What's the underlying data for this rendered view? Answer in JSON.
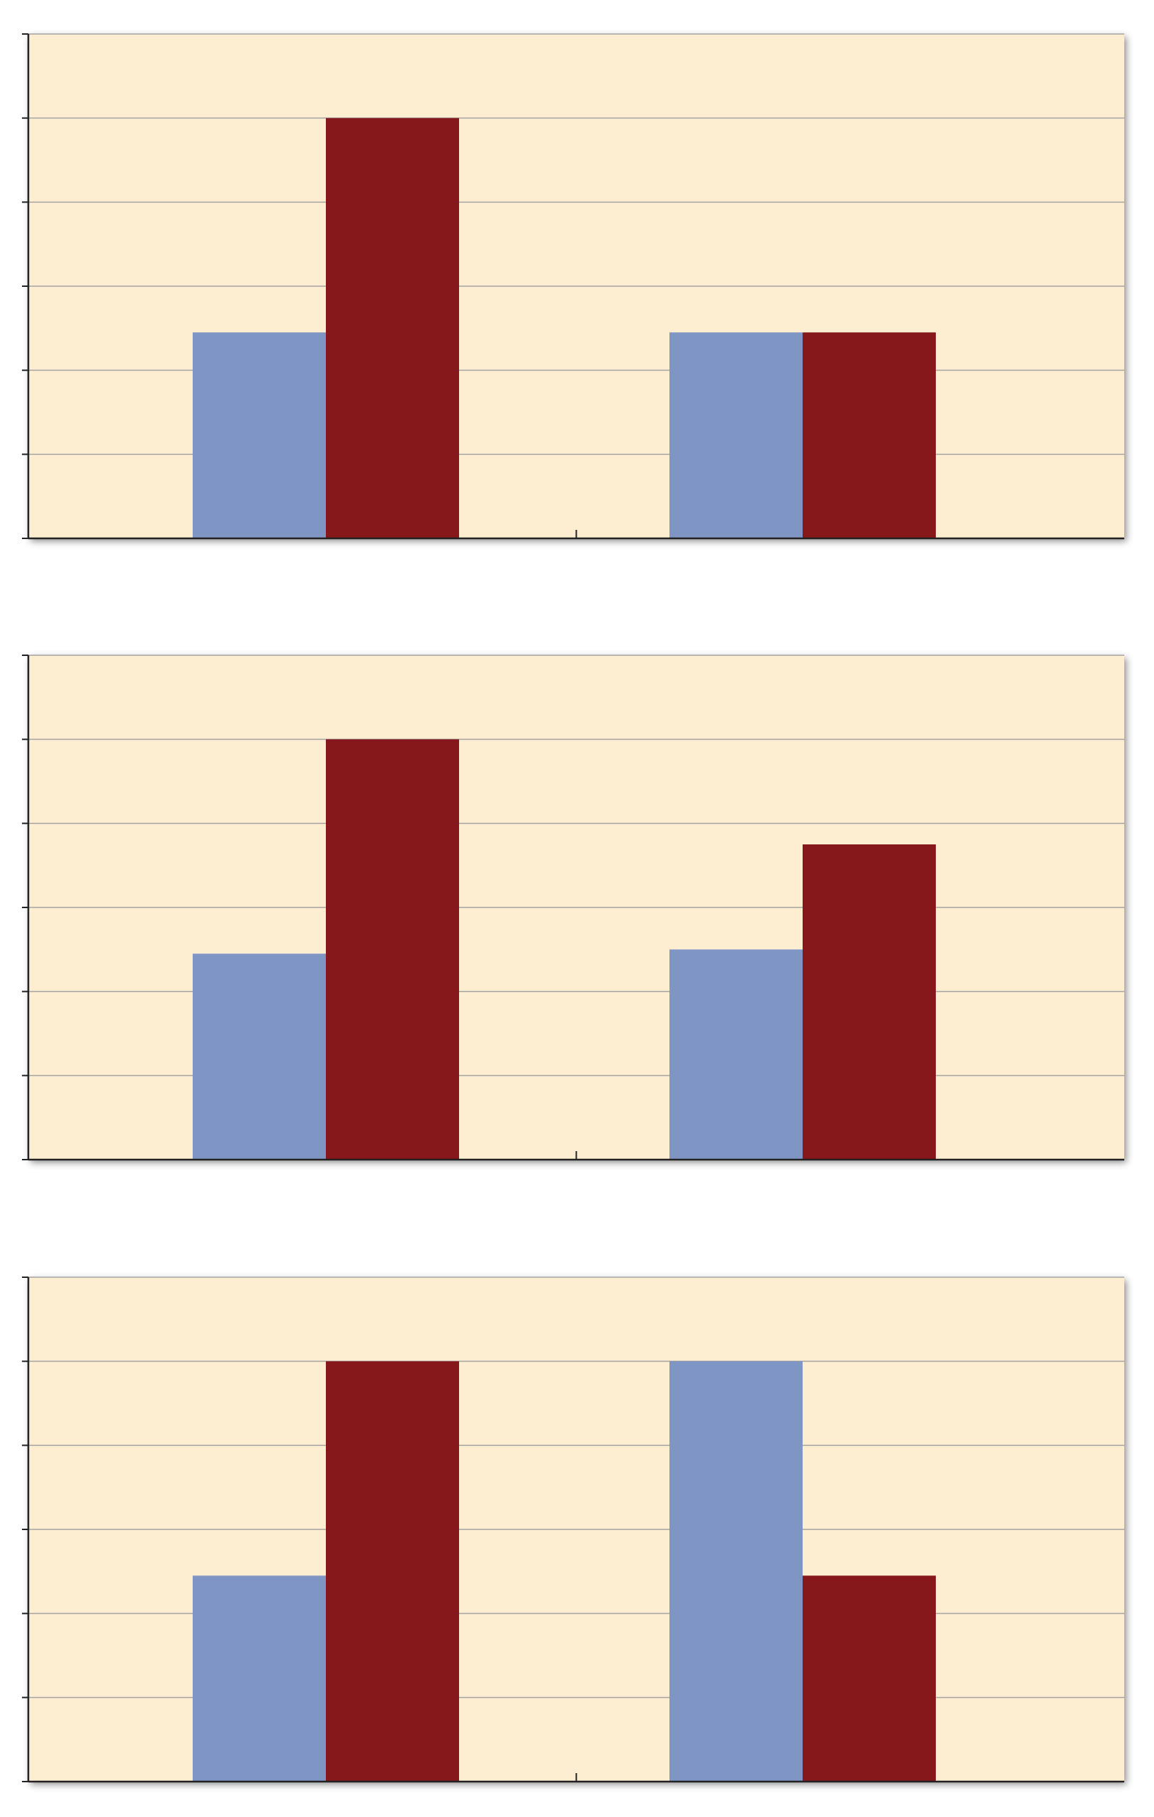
{
  "colors": {
    "background": "#ffffff",
    "plot_fill": "#fdeed1",
    "gridline": "#a3a3a3",
    "axis": "#222222",
    "series_a": "#7f95c4",
    "series_b": "#86171b"
  },
  "chart_data": [
    {
      "type": "bar",
      "categories": [
        "",
        ""
      ],
      "series": [
        {
          "color": "#7f95c4",
          "values": [
            2.45,
            2.45
          ]
        },
        {
          "color": "#86171b",
          "values": [
            5.0,
            2.45
          ]
        }
      ],
      "ylim": [
        0,
        6
      ],
      "y_ticks": [
        0,
        1,
        2,
        3,
        4,
        5,
        6
      ],
      "grid": true,
      "legend": "none"
    },
    {
      "type": "bar",
      "categories": [
        "",
        ""
      ],
      "series": [
        {
          "color": "#7f95c4",
          "values": [
            2.45,
            2.5
          ]
        },
        {
          "color": "#86171b",
          "values": [
            5.0,
            3.75
          ]
        }
      ],
      "ylim": [
        0,
        6
      ],
      "y_ticks": [
        0,
        1,
        2,
        3,
        4,
        5,
        6
      ],
      "grid": true,
      "legend": "none"
    },
    {
      "type": "bar",
      "categories": [
        "",
        ""
      ],
      "series": [
        {
          "color": "#7f95c4",
          "values": [
            2.45,
            5.0
          ]
        },
        {
          "color": "#86171b",
          "values": [
            5.0,
            2.45
          ]
        }
      ],
      "ylim": [
        0,
        6
      ],
      "y_ticks": [
        0,
        1,
        2,
        3,
        4,
        5,
        6
      ],
      "grid": true,
      "legend": "none"
    }
  ]
}
